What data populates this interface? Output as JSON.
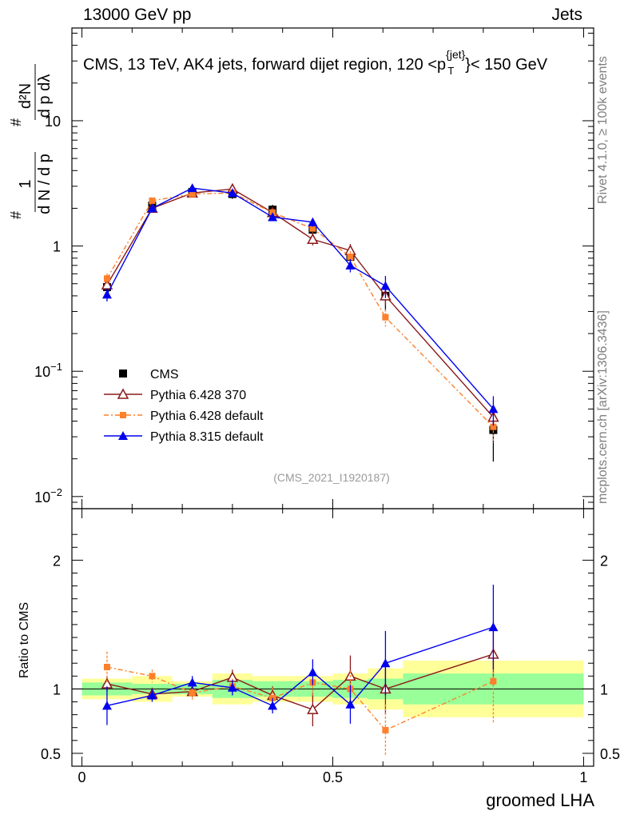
{
  "header": {
    "left": "13000 GeV pp",
    "right": "Jets",
    "title": "CMS, 13 TeV, AK4 jets, forward dijet region, 120 <p",
    "title_sup": "{jet}",
    "title_sub": "T",
    "title_end": "}< 150 GeV",
    "analysis_id": "(CMS_2021_I1920187)",
    "side_rivet": "Rivet 4.1.0, ≥ 100k events",
    "side_mcplots": "mcplots.cern.ch [arXiv:1306.3436]"
  },
  "chart_data": {
    "type": "scatter",
    "xlabel": "groomed LHA",
    "ylabel": "#frac{1}{dN / dp_T} #frac{d^2N}{dp_T dλ}",
    "ylabel_parts": {
      "one": "1",
      "dN": "d N / d p",
      "num": "d²N",
      "den": "d p  dλ",
      "T": "T",
      "hash": "#"
    },
    "ratio_ylabel": "Ratio to CMS",
    "xlim": [
      -0.02,
      1.02
    ],
    "ylim_main": [
      0.008,
      55
    ],
    "ylim_ratio": [
      0.4,
      2.4
    ],
    "x_ticks": [
      {
        "v": 0,
        "label": "0"
      },
      {
        "v": 0.5,
        "label": "0.5"
      },
      {
        "v": 1,
        "label": "1"
      }
    ],
    "y_ticks_main": [
      {
        "v": 0.01,
        "base": "10",
        "exp": "−2"
      },
      {
        "v": 0.1,
        "base": "10",
        "exp": "−1"
      },
      {
        "v": 1,
        "base": "1",
        "exp": ""
      },
      {
        "v": 10,
        "base": "10",
        "exp": ""
      }
    ],
    "y_ticks_ratio": [
      {
        "v": 0.5,
        "label": "0.5"
      },
      {
        "v": 1,
        "label": "1"
      },
      {
        "v": 2,
        "label": "2"
      }
    ],
    "bins": [
      [
        0.0,
        0.1
      ],
      [
        0.1,
        0.18
      ],
      [
        0.18,
        0.26
      ],
      [
        0.26,
        0.34
      ],
      [
        0.34,
        0.42
      ],
      [
        0.42,
        0.5
      ],
      [
        0.5,
        0.57
      ],
      [
        0.57,
        0.64
      ],
      [
        0.64,
        1.0
      ]
    ],
    "x": [
      0.05,
      0.14,
      0.22,
      0.3,
      0.38,
      0.46,
      0.535,
      0.605,
      0.82
    ],
    "data": {
      "name": "CMS",
      "values": [
        0.47,
        2.1,
        2.7,
        2.6,
        1.95,
        1.35,
        0.82,
        0.4,
        0.034
      ],
      "band_stat": [
        0.05,
        0.04,
        0.04,
        0.07,
        0.06,
        0.06,
        0.07,
        0.08,
        0.12
      ],
      "band_total": [
        0.08,
        0.1,
        0.06,
        0.12,
        0.1,
        0.1,
        0.12,
        0.16,
        0.22
      ]
    },
    "series": [
      {
        "name": "Pythia 6.428 370",
        "color": "#8b1a1a",
        "marker": "open-triangle",
        "dash": "",
        "values": [
          0.49,
          2.0,
          2.65,
          2.85,
          1.85,
          1.13,
          0.92,
          0.4,
          0.043
        ],
        "ratio": [
          1.04,
          0.96,
          0.98,
          1.09,
          0.95,
          0.84,
          1.1,
          1.0,
          1.27
        ],
        "ratio_err": [
          0.06,
          0.05,
          0.04,
          0.06,
          0.07,
          0.13,
          0.16,
          0.2,
          0.25
        ]
      },
      {
        "name": "Pythia 6.428 default",
        "color": "#ff7f2a",
        "marker": "filled-square",
        "dash": "6,3,2,3",
        "values": [
          0.55,
          2.3,
          2.6,
          2.65,
          1.85,
          1.38,
          0.82,
          0.27,
          0.036
        ],
        "ratio": [
          1.17,
          1.1,
          0.97,
          1.02,
          0.93,
          1.05,
          1.0,
          0.68,
          1.06
        ],
        "ratio_err": [
          0.12,
          0.05,
          0.06,
          0.06,
          0.08,
          0.1,
          0.14,
          0.2,
          0.32
        ]
      },
      {
        "name": "Pythia 8.315 default",
        "color": "#0000ee",
        "marker": "filled-triangle",
        "dash": "",
        "values": [
          0.41,
          2.0,
          2.9,
          2.65,
          1.7,
          1.55,
          0.7,
          0.48,
          0.05
        ],
        "ratio": [
          0.87,
          0.95,
          1.05,
          1.01,
          0.87,
          1.13,
          0.88,
          1.2,
          1.48
        ],
        "ratio_err": [
          0.15,
          0.05,
          0.05,
          0.06,
          0.06,
          0.1,
          0.15,
          0.25,
          0.33
        ]
      }
    ],
    "main_err": [
      0.07,
      0.14,
      0.18,
      0.22,
      0.18,
      0.15,
      0.12,
      0.1,
      0.015
    ],
    "legend": {
      "position": "bottom-left",
      "entries": [
        "CMS",
        "Pythia 6.428 370",
        "Pythia 6.428 default",
        "Pythia 8.315 default"
      ]
    }
  }
}
